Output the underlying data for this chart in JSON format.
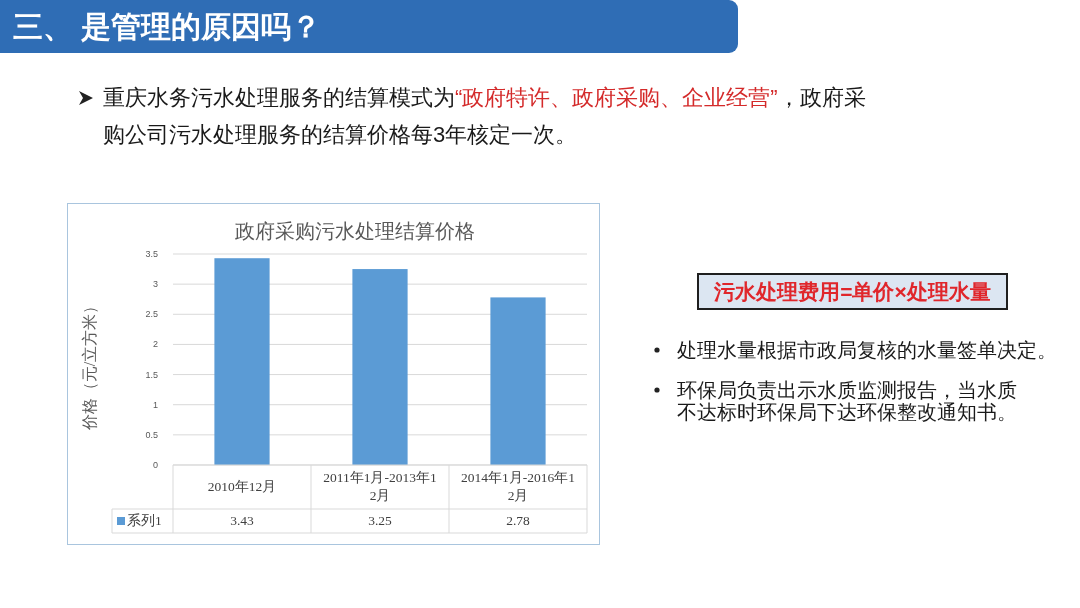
{
  "chart_data": {
    "type": "bar",
    "title": "政府采购污水处理结算价格",
    "ylabel": "价格（元/立方米）",
    "categories": [
      "2010年12月",
      "2011年1月-2013年12月",
      "2014年1月-2016年12月"
    ],
    "series": [
      {
        "name": "系列1",
        "color": "#5b9bd5",
        "values": [
          3.43,
          3.25,
          2.78
        ]
      }
    ],
    "ylim": [
      0,
      3.5
    ],
    "yticks": [
      0,
      0.5,
      1,
      1.5,
      2,
      2.5,
      3,
      3.5
    ],
    "grid": "y",
    "data_labels": true,
    "legend": "bottom left",
    "annotations": [
      "三、 是管理的原因吗？",
      "重庆水务污水处理服务的结算模式为",
      "“政府特许、政府采购、企业经营”",
      "，政府采",
      "购公司污水处理服务的结算价格每3年核定一次。",
      "污水处理费用=单价×处理水量",
      "处理水量根据市政局复核的水量签单决定。",
      "环保局负责出示水质监测报告，当水质不达标时环保局下达环保整改通知书。"
    ]
  }
}
